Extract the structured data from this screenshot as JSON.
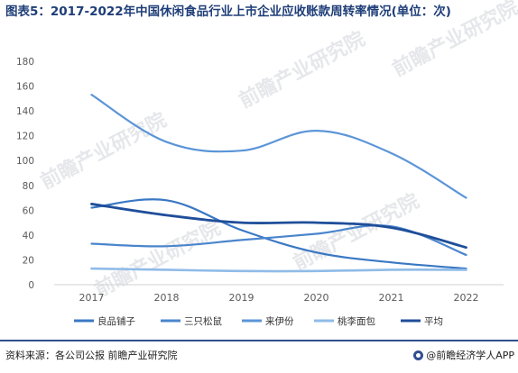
{
  "title": "图表5：2017-2022年中国休闲食品行业上市企业应收账款周转率情况(单位：次)",
  "source": "资料来源：各公司公报 前瞻产业研究院",
  "brand": "@前瞻经济学人APP",
  "watermark": "前瞻产业研究院",
  "chart_data": {
    "type": "line",
    "x": [
      "2017",
      "2018",
      "2019",
      "2020",
      "2021",
      "2022"
    ],
    "ylim": [
      0,
      180
    ],
    "yticks": [
      0,
      20,
      40,
      60,
      80,
      100,
      120,
      140,
      160,
      180
    ],
    "grid": false,
    "legend_position": "bottom",
    "series": [
      {
        "name": "良品铺子",
        "color": "#3a78c4",
        "width": 2.2,
        "values": [
          62,
          68,
          44,
          26,
          18,
          13
        ]
      },
      {
        "name": "三只松鼠",
        "color": "#4a85cc",
        "width": 2.2,
        "values": [
          33,
          31,
          36,
          41,
          47,
          24
        ]
      },
      {
        "name": "来伊份",
        "color": "#5b95d8",
        "width": 2.2,
        "values": [
          153,
          115,
          108,
          124,
          106,
          70
        ]
      },
      {
        "name": "桃李面包",
        "color": "#8fbbe8",
        "width": 2.6,
        "values": [
          13,
          12,
          11,
          11,
          12,
          12
        ]
      },
      {
        "name": "平均",
        "color": "#1f4e9a",
        "width": 2.8,
        "values": [
          65,
          56,
          50,
          50,
          46,
          30
        ]
      }
    ]
  }
}
